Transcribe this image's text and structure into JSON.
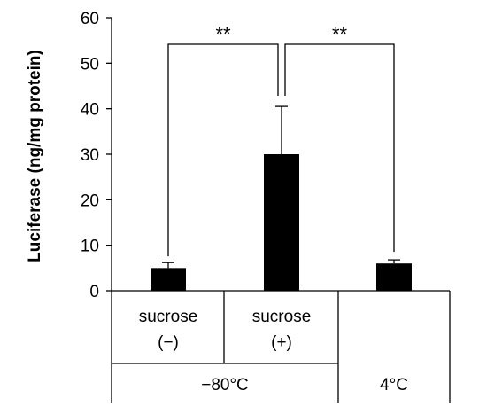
{
  "chart_data": {
    "type": "bar",
    "title": "",
    "xlabel": "",
    "ylabel": "Luciferase (ng/mg protein)",
    "ylim": [
      0,
      60
    ],
    "yticks": [
      0,
      10,
      20,
      30,
      40,
      50,
      60
    ],
    "grid": false,
    "legend": "none",
    "bar_color": "#000000",
    "categories": [
      {
        "line1": "sucrose",
        "line2": "(−)"
      },
      {
        "line1": "sucrose",
        "line2": "(+)"
      },
      {
        "line1": "",
        "line2": ""
      }
    ],
    "values": [
      5,
      30,
      6
    ],
    "errors": [
      1.2,
      10.5,
      0.8
    ],
    "groups": [
      {
        "label": "−80°C",
        "categories": [
          0,
          1
        ]
      },
      {
        "label": "4°C",
        "categories": [
          2
        ]
      }
    ],
    "significance": [
      {
        "from": 0,
        "to": 1,
        "label": "**"
      },
      {
        "from": 1,
        "to": 2,
        "label": "**"
      }
    ]
  }
}
